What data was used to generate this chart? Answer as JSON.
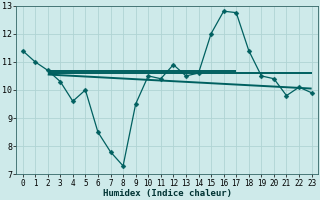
{
  "xlabel": "Humidex (Indice chaleur)",
  "bg_color": "#ceeaea",
  "grid_color": "#b0d4d4",
  "line_color": "#006060",
  "xlim": [
    -0.5,
    23.5
  ],
  "ylim": [
    7,
    13
  ],
  "xticks": [
    0,
    1,
    2,
    3,
    4,
    5,
    6,
    7,
    8,
    9,
    10,
    11,
    12,
    13,
    14,
    15,
    16,
    17,
    18,
    19,
    20,
    21,
    22,
    23
  ],
  "yticks": [
    7,
    8,
    9,
    10,
    11,
    12,
    13
  ],
  "main_x": [
    0,
    1,
    2,
    3,
    4,
    5,
    6,
    7,
    8,
    9,
    10,
    11,
    12,
    13,
    14,
    15,
    16,
    17,
    18,
    19,
    20,
    21,
    22,
    23
  ],
  "main_y": [
    11.4,
    11.0,
    10.7,
    10.3,
    9.6,
    10.0,
    8.5,
    7.8,
    7.3,
    9.5,
    10.5,
    10.4,
    10.9,
    10.5,
    10.6,
    12.0,
    12.8,
    12.75,
    11.4,
    10.5,
    10.4,
    9.8,
    10.1,
    9.9
  ],
  "trend1_x": [
    2,
    17
  ],
  "trend1_y": [
    10.68,
    10.68
  ],
  "trend2_x": [
    2,
    23
  ],
  "trend2_y": [
    10.62,
    10.62
  ],
  "trend3_x": [
    2,
    23
  ],
  "trend3_y": [
    10.55,
    10.05
  ],
  "marker_size": 2.5,
  "line_width": 1.0,
  "xlabel_fontsize": 6.5,
  "tick_fontsize": 5.5
}
